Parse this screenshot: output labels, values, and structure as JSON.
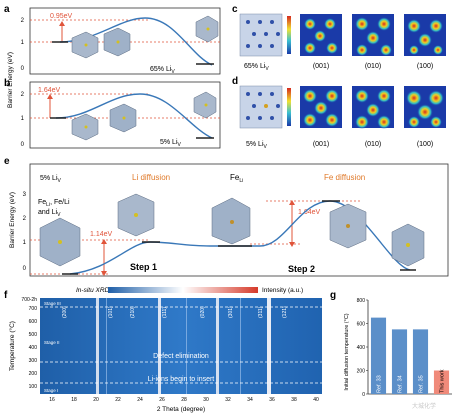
{
  "panels": {
    "a": {
      "label": "a",
      "barrier_label": "0.95eV",
      "condition": "65% Li",
      "condition_sub": "V",
      "yticks": [
        "2",
        "1",
        "0"
      ]
    },
    "b": {
      "label": "b",
      "barrier_label": "1.64eV",
      "condition": "5% Li",
      "condition_sub": "V",
      "yticks": [
        "2",
        "1",
        "0"
      ]
    },
    "ab_ylabel": "Barrier Energy (eV)",
    "c": {
      "label": "c",
      "condition": "65% Li",
      "condition_sub": "V",
      "planes": [
        "(001)",
        "(010)",
        "(100)"
      ]
    },
    "d": {
      "label": "d",
      "condition": "5% Li",
      "condition_sub": "V",
      "planes": [
        "(001)",
        "(010)",
        "(100)"
      ]
    },
    "e": {
      "label": "e",
      "condition": "5% Li",
      "condition_sub": "V",
      "ylabel": "Barrier Energy (eV)",
      "yticks": [
        "3",
        "2",
        "1",
        "0"
      ],
      "li_diffusion": "Li diffusion",
      "fe_diffusion": "Fe diffusion",
      "fe_li_label": "Fe",
      "fe_li_sub": "Li",
      "start_label_line1": "Fe",
      "start_label_line1_sub": "Li",
      "start_label_line1_rest": ", Fe/Li",
      "start_label_line2": "and Li",
      "start_label_line2_sub": "V",
      "barrier1": "1.14eV",
      "barrier2": "1.64eV",
      "step1": "Step 1",
      "step2": "Step 2"
    },
    "f": {
      "label": "f",
      "title_left": "In-situ XRD",
      "title_right": "Intensity (a.u.)",
      "ylabel": "Temperature (°C)",
      "xlabel": "2 Theta (degree)",
      "top_tick": "700-2h",
      "yticks": [
        "700",
        "600",
        "500",
        "400",
        "300",
        "200",
        "100"
      ],
      "xticks": [
        "16",
        "18",
        "20",
        "22",
        "24",
        "26",
        "28",
        "30",
        "32",
        "34",
        "36",
        "38",
        "40"
      ],
      "stages": [
        "Stage III",
        "Stage II",
        "Stage I"
      ],
      "peaks": [
        "(200)",
        "(101)",
        "(210)",
        "(111)",
        "(020)",
        "(301)",
        "(311)",
        "(121)"
      ],
      "annotation_defect": "Defect elimination",
      "annotation_li": "Li-ions begin to insert"
    },
    "g": {
      "label": "g",
      "ylabel": "Initial diffusion temperature (°C)",
      "yticks": [
        "800",
        "600",
        "400",
        "200",
        "0"
      ]
    }
  },
  "colors": {
    "curve": "#3a78b8",
    "barrier": "#e0543a",
    "bar_ref": "#5b8fc9",
    "bar_work": "#f08a7a"
  },
  "chart_data": [
    {
      "type": "bar",
      "panel": "g",
      "categories": [
        "Ref. 33",
        "Ref. 34",
        "Ref. 35",
        "This work"
      ],
      "values": [
        650,
        550,
        550,
        200
      ],
      "ylabel": "Initial diffusion temperature (°C)",
      "ylim": [
        0,
        800
      ]
    }
  ],
  "watermark": "大城化学"
}
